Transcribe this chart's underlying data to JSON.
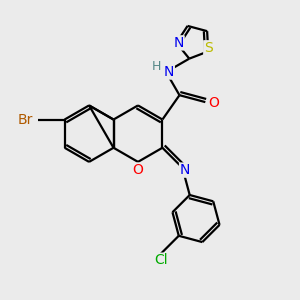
{
  "bg_color": "#ebebeb",
  "bond_color": "#000000",
  "bond_width": 1.6,
  "atom_colors": {
    "Br": "#b05a00",
    "O": "#ff0000",
    "N": "#0000ee",
    "S": "#bbbb00",
    "Cl": "#00aa00",
    "H": "#558888"
  },
  "font_size": 10
}
